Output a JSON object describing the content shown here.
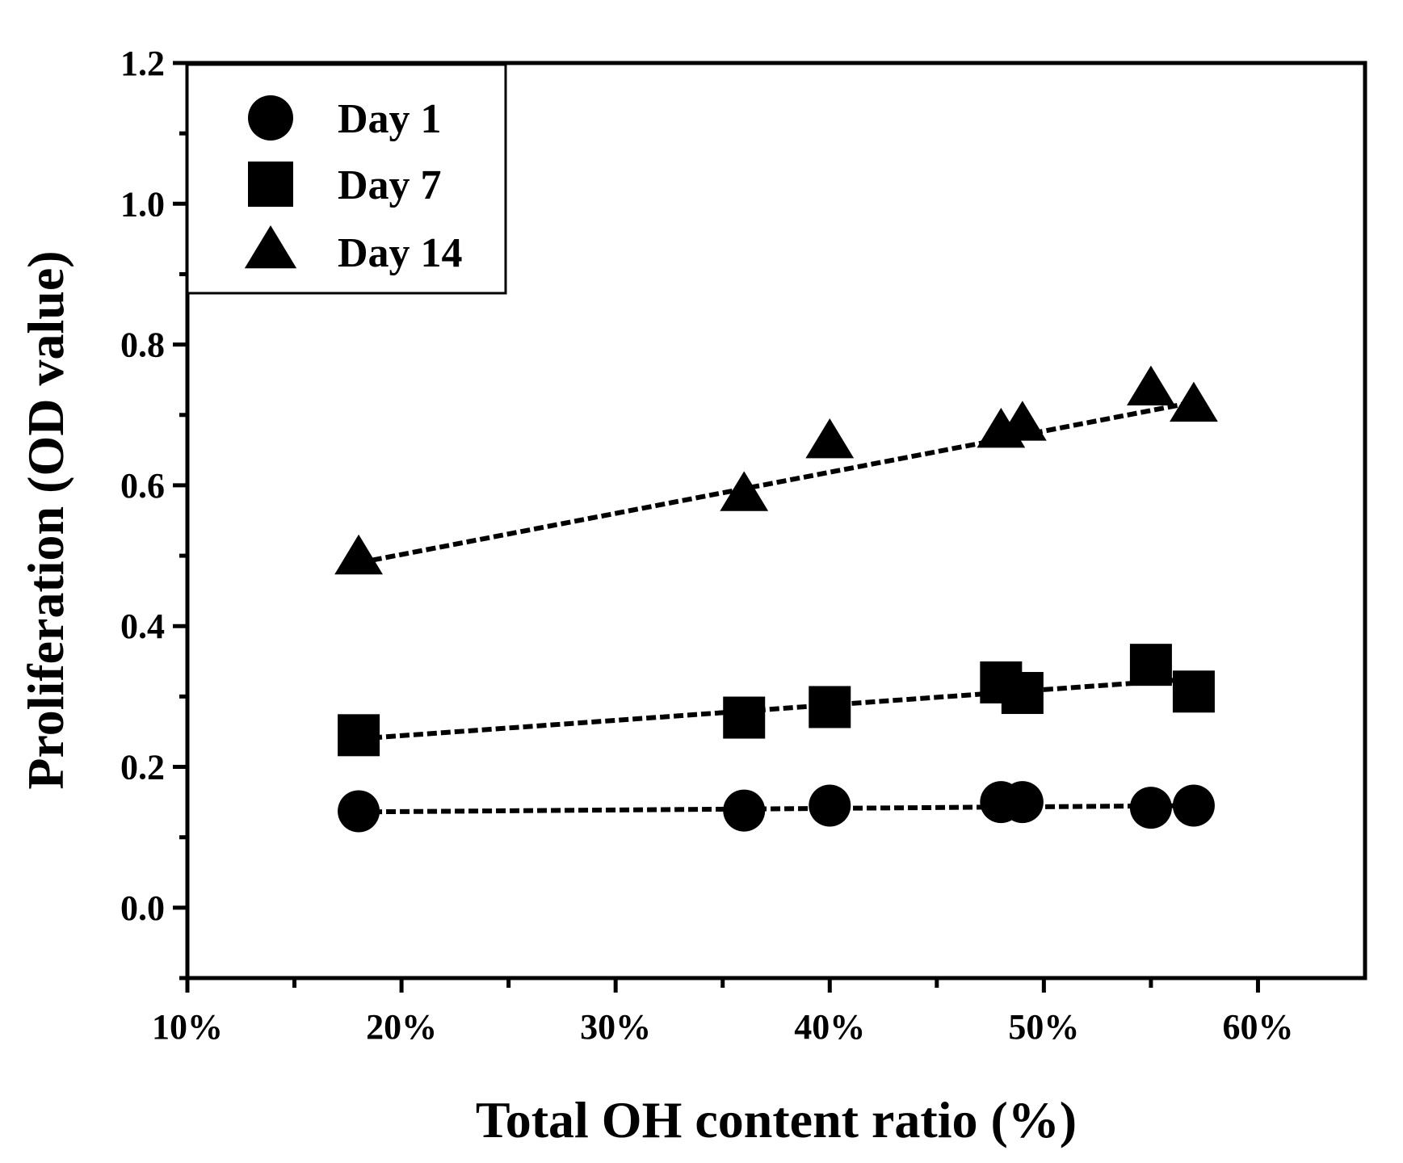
{
  "chart_data": {
    "type": "scatter",
    "title": "",
    "xlabel": "Total OH content ratio (%)",
    "ylabel": "Proliferation (OD value)",
    "xlim": [
      10,
      65
    ],
    "ylim": [
      -0.1,
      1.2
    ],
    "xticks": [
      10,
      20,
      30,
      40,
      50,
      60
    ],
    "xtick_labels": [
      "10%",
      "20%",
      "30%",
      "40%",
      "50%",
      "60%"
    ],
    "yticks": [
      0.0,
      0.2,
      0.4,
      0.6,
      0.8,
      1.0,
      1.2
    ],
    "ytick_labels": [
      "0.0",
      "0.2",
      "0.4",
      "0.6",
      "0.8",
      "1.0",
      "1.2"
    ],
    "legend_position": "top-left",
    "series": [
      {
        "name": "Day 1",
        "marker": "circle",
        "x": [
          18,
          36,
          40,
          48,
          49,
          55,
          57
        ],
        "y": [
          0.137,
          0.138,
          0.145,
          0.15,
          0.15,
          0.142,
          0.145
        ],
        "fit": {
          "x": [
            18,
            57
          ],
          "y": [
            0.136,
            0.145
          ]
        }
      },
      {
        "name": "Day 7",
        "marker": "square",
        "x": [
          18,
          36,
          40,
          48,
          49,
          55,
          57
        ],
        "y": [
          0.245,
          0.27,
          0.285,
          0.32,
          0.305,
          0.345,
          0.307
        ],
        "fit": {
          "x": [
            18,
            57
          ],
          "y": [
            0.24,
            0.325
          ]
        }
      },
      {
        "name": "Day 14",
        "marker": "triangle",
        "x": [
          18,
          36,
          40,
          48,
          49,
          55,
          57
        ],
        "y": [
          0.495,
          0.585,
          0.66,
          0.675,
          0.685,
          0.735,
          0.712
        ],
        "fit": {
          "x": [
            18,
            57
          ],
          "y": [
            0.49,
            0.718
          ]
        }
      }
    ],
    "colors": {
      "marker": "#000000",
      "axis": "#000000",
      "background": "#ffffff"
    }
  }
}
